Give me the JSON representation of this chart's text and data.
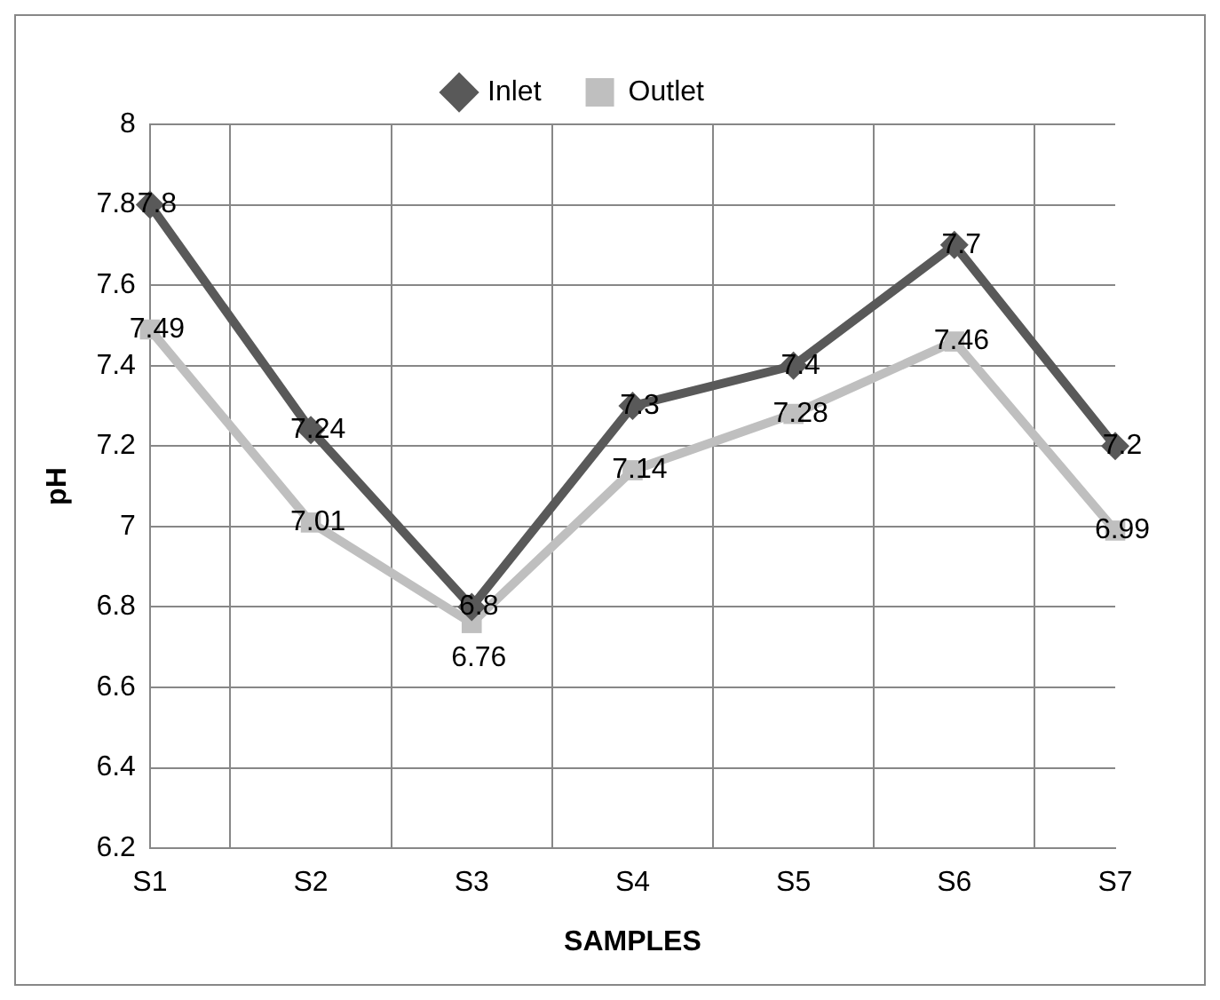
{
  "chart_data": {
    "type": "line",
    "xlabel": "SAMPLES",
    "ylabel": "pH",
    "categories": [
      "S1",
      "S2",
      "S3",
      "S4",
      "S5",
      "S6",
      "S7"
    ],
    "series": [
      {
        "name": "Inlet",
        "color": "#595959",
        "marker": "diamond",
        "values": [
          7.8,
          7.24,
          6.8,
          7.3,
          7.4,
          7.7,
          7.2
        ]
      },
      {
        "name": "Outlet",
        "color": "#bfbfbf",
        "marker": "square",
        "values": [
          7.49,
          7.01,
          6.76,
          7.14,
          7.28,
          7.46,
          6.99
        ]
      }
    ],
    "ylim": [
      6.2,
      8
    ],
    "yticks": [
      6.2,
      6.4,
      6.6,
      6.8,
      7,
      7.2,
      7.4,
      7.6,
      7.8,
      8
    ],
    "grid": true,
    "legend": "top",
    "data_labels": true
  }
}
